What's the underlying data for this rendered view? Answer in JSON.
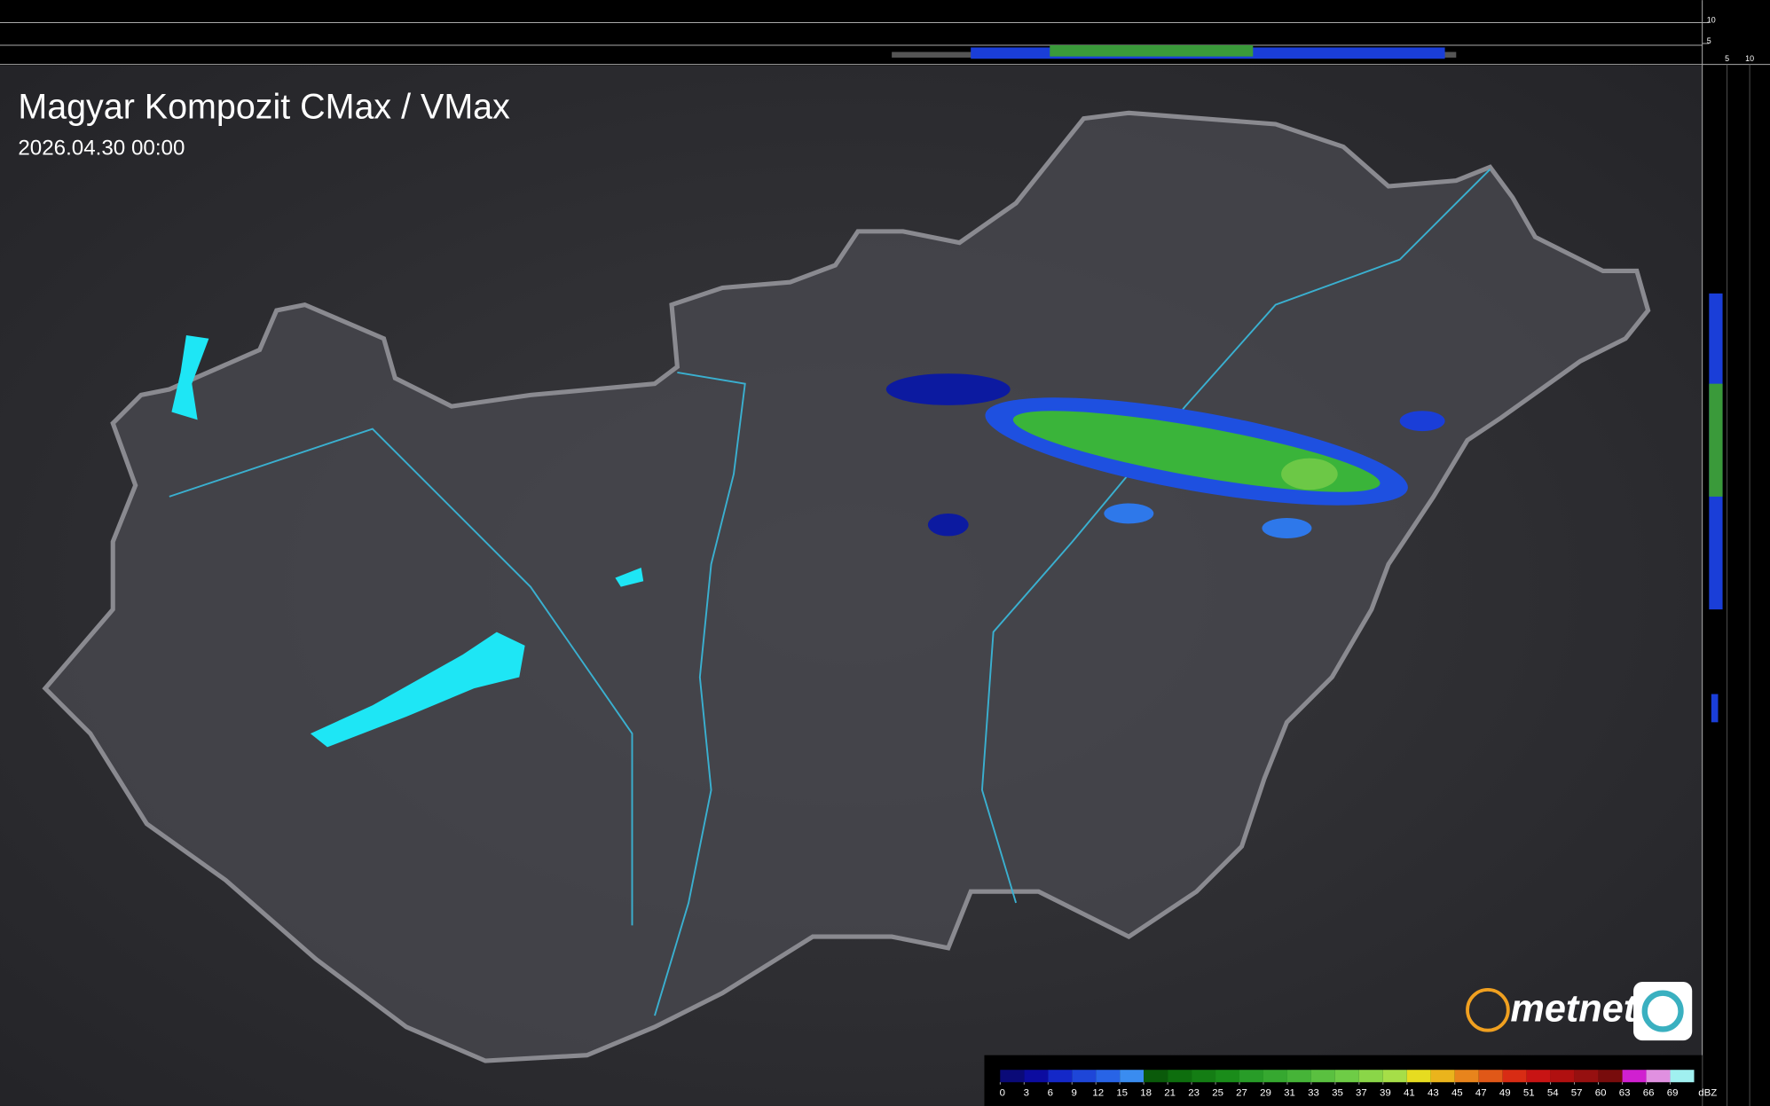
{
  "title": "Magyar Kompozit CMax / VMax",
  "timestamp": "2026.04.30 00:00",
  "logo": "metnet",
  "top_profile": {
    "ticks": [
      10,
      5
    ]
  },
  "right_profile": {
    "ticks": [
      5,
      10
    ]
  },
  "legend": {
    "unit": "dBZ",
    "ticks": [
      0,
      3,
      6,
      9,
      12,
      15,
      18,
      21,
      23,
      25,
      27,
      29,
      31,
      33,
      35,
      37,
      39,
      41,
      43,
      45,
      47,
      49,
      51,
      54,
      57,
      60,
      63,
      66,
      69
    ],
    "colors": [
      "#0a0a78",
      "#0c0ca0",
      "#1428c8",
      "#1e46d8",
      "#2864e6",
      "#3a8cf0",
      "#0a5a0a",
      "#0e6e0e",
      "#147d14",
      "#1a8c1a",
      "#289c28",
      "#36a830",
      "#46b438",
      "#5ac040",
      "#6ecc46",
      "#8ad648",
      "#a6de48",
      "#e6dc20",
      "#eab41c",
      "#e8841c",
      "#e05818",
      "#d82c14",
      "#c81414",
      "#b01010",
      "#961010",
      "#780c0c",
      "#d020d0",
      "#e090e0",
      "#a0f0f0"
    ]
  }
}
